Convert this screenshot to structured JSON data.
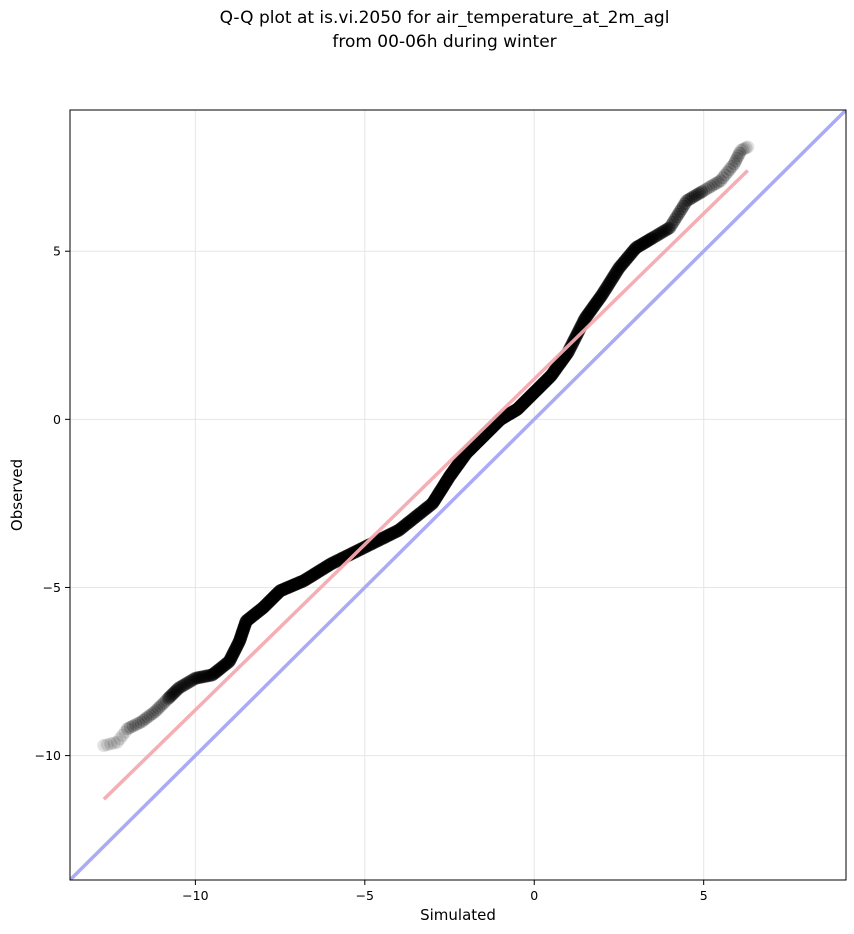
{
  "chart_data": {
    "type": "scatter",
    "title": "Q-Q plot at is.vi.2050 for air_temperature_at_2m_agl",
    "subtitle": "from 00-06h during winter",
    "xlabel": "Simulated",
    "ylabel": "Observed",
    "xlim": [
      -13.7,
      9.2
    ],
    "ylim": [
      -13.7,
      9.2
    ],
    "x_ticks": [
      -10,
      -5,
      0,
      5
    ],
    "y_ticks": [
      -10,
      -5,
      0,
      5
    ],
    "x_tick_labels": [
      "−10",
      "−5",
      "0",
      "5"
    ],
    "y_tick_labels": [
      "−10",
      "−5",
      "0",
      "5"
    ],
    "grid": true,
    "legend": "none",
    "colors": {
      "points": "#000000",
      "identity_line": "#aaaaf6",
      "fit_line": "#f5aaaf"
    },
    "reference_lines": {
      "identity": {
        "from": [
          -13.7,
          -13.7
        ],
        "to": [
          9.2,
          9.2
        ]
      },
      "fit": {
        "from": [
          -12.7,
          -11.3
        ],
        "to": [
          6.3,
          7.4
        ]
      }
    },
    "quantile_curve": [
      [
        -12.7,
        -9.7
      ],
      [
        -12.3,
        -9.6
      ],
      [
        -12.0,
        -9.2
      ],
      [
        -11.6,
        -9.0
      ],
      [
        -11.2,
        -8.7
      ],
      [
        -10.8,
        -8.3
      ],
      [
        -10.5,
        -8.0
      ],
      [
        -10.0,
        -7.7
      ],
      [
        -9.5,
        -7.6
      ],
      [
        -9.0,
        -7.2
      ],
      [
        -8.7,
        -6.6
      ],
      [
        -8.5,
        -6.0
      ],
      [
        -8.0,
        -5.6
      ],
      [
        -7.5,
        -5.1
      ],
      [
        -6.8,
        -4.8
      ],
      [
        -6.0,
        -4.3
      ],
      [
        -5.0,
        -3.8
      ],
      [
        -4.0,
        -3.3
      ],
      [
        -3.0,
        -2.5
      ],
      [
        -2.5,
        -1.7
      ],
      [
        -2.0,
        -1.0
      ],
      [
        -1.5,
        -0.5
      ],
      [
        -1.0,
        0.0
      ],
      [
        -0.5,
        0.3
      ],
      [
        0.0,
        0.8
      ],
      [
        0.5,
        1.3
      ],
      [
        1.0,
        2.0
      ],
      [
        1.5,
        3.0
      ],
      [
        2.0,
        3.7
      ],
      [
        2.5,
        4.5
      ],
      [
        3.0,
        5.1
      ],
      [
        3.5,
        5.4
      ],
      [
        4.0,
        5.7
      ],
      [
        4.5,
        6.5
      ],
      [
        5.0,
        6.8
      ],
      [
        5.5,
        7.1
      ],
      [
        5.9,
        7.6
      ],
      [
        6.1,
        8.0
      ],
      [
        6.3,
        8.1
      ]
    ]
  }
}
